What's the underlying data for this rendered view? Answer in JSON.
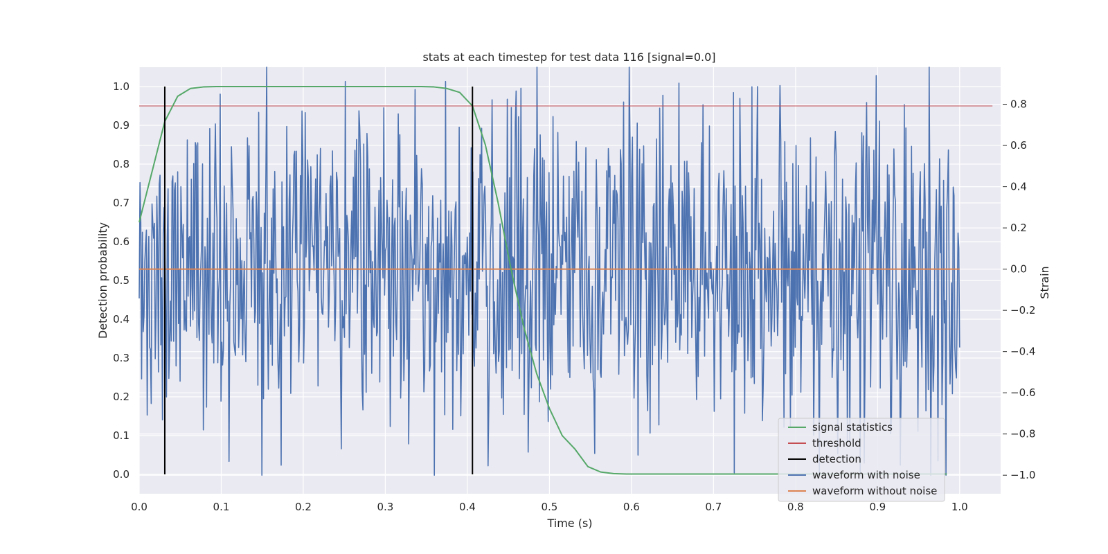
{
  "chart_data": {
    "type": "line",
    "title": "stats at each timestep for test data 116 [signal=0.0]",
    "xlabel": "Time (s)",
    "ylabel_left": "Detection probability",
    "ylabel_right": "Strain",
    "xlim": [
      0.0,
      1.05
    ],
    "ylim_left": [
      -0.05,
      1.05
    ],
    "ylim_right": [
      -1.09,
      0.98
    ],
    "xticks": [
      "0.0",
      "0.1",
      "0.2",
      "0.3",
      "0.4",
      "0.5",
      "0.6",
      "0.7",
      "0.8",
      "0.9",
      "1.0"
    ],
    "yticks_left": [
      "0.0",
      "0.1",
      "0.2",
      "0.3",
      "0.4",
      "0.5",
      "0.6",
      "0.7",
      "0.8",
      "0.9",
      "1.0"
    ],
    "yticks_right": [
      "−1.0",
      "−0.8",
      "−0.6",
      "−0.4",
      "−0.2",
      "0.0",
      "0.2",
      "0.4",
      "0.6",
      "0.8"
    ],
    "grid": true,
    "legend_position": "lower-right",
    "colors": {
      "background": "#eaeaf2",
      "grid": "#ffffff",
      "signal_statistics": "#55a868",
      "threshold": "#c44e52",
      "detection": "#000000",
      "waveform_with_noise": "#4c72b0",
      "waveform_without_noise": "#dd8452"
    },
    "series": [
      {
        "name": "signal statistics",
        "axis": "left",
        "x": [
          0.0,
          0.0156,
          0.0312,
          0.0469,
          0.0625,
          0.0781,
          0.0938,
          0.1094,
          0.125,
          0.1406,
          0.1562,
          0.1719,
          0.1875,
          0.2031,
          0.2188,
          0.2344,
          0.25,
          0.2656,
          0.2812,
          0.2969,
          0.3125,
          0.3281,
          0.3438,
          0.3594,
          0.375,
          0.3906,
          0.4062,
          0.4219,
          0.4375,
          0.4531,
          0.4688,
          0.4844,
          0.5,
          0.5156,
          0.5312,
          0.5469,
          0.5625,
          0.5781,
          0.5938,
          0.6094,
          0.625,
          0.6406,
          0.6562,
          0.6719,
          0.6875,
          0.7031,
          0.7188,
          0.7344,
          0.75,
          0.7656,
          0.7812,
          0.7969,
          0.8125,
          0.8281,
          0.8438,
          0.8594,
          0.875,
          0.8906,
          0.9062,
          0.9219,
          0.9375,
          0.9531,
          0.9688,
          0.9844
        ],
        "y": [
          0.65,
          0.78,
          0.91,
          0.975,
          0.995,
          0.999,
          1.0,
          1.0,
          1.0,
          1.0,
          1.0,
          1.0,
          1.0,
          1.0,
          1.0,
          1.0,
          1.0,
          1.0,
          1.0,
          1.0,
          1.0,
          1.0,
          1.0,
          0.999,
          0.995,
          0.985,
          0.95,
          0.85,
          0.7,
          0.53,
          0.38,
          0.26,
          0.17,
          0.1,
          0.065,
          0.02,
          0.006,
          0.002,
          0.001,
          0.001,
          0.001,
          0.001,
          0.001,
          0.001,
          0.001,
          0.001,
          0.001,
          0.001,
          0.001,
          0.001,
          0.001,
          0.001,
          0.001,
          0.001,
          0.001,
          0.001,
          0.001,
          0.001,
          0.001,
          0.001,
          0.001,
          0.001,
          0.001,
          0.001
        ]
      },
      {
        "name": "threshold",
        "axis": "left",
        "x": [
          0.0,
          1.04
        ],
        "y": [
          0.95,
          0.95
        ]
      },
      {
        "name": "detection",
        "axis": "left",
        "segments": [
          {
            "x": 0.0312,
            "y": [
              0.0,
              1.0
            ]
          },
          {
            "x": 0.4062,
            "y": [
              0.0,
              1.0
            ]
          }
        ]
      },
      {
        "name": "waveform with noise",
        "axis": "right",
        "x_start": 0.0,
        "x_end": 1.0,
        "n_points": 1024,
        "y_range": [
          -1.0,
          0.98
        ],
        "note": "noise-like oscillation, amplitude about ±0.5 strain with peaks reaching about ±0.95"
      },
      {
        "name": "waveform without noise",
        "axis": "right",
        "x": [
          0.0,
          1.0
        ],
        "y": [
          0.0,
          0.0
        ]
      }
    ]
  }
}
